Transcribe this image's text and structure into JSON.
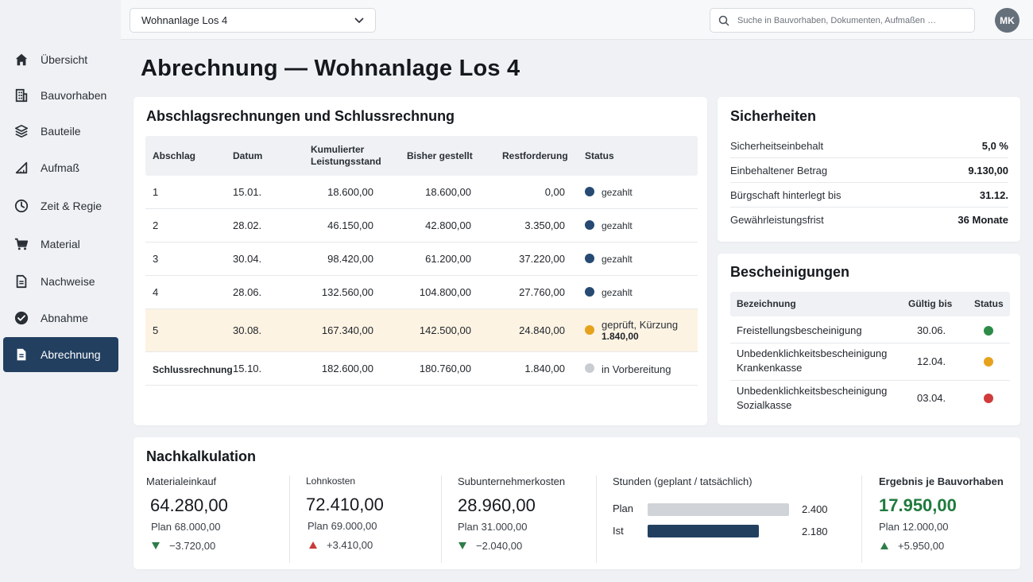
{
  "sidebar": {
    "items": [
      {
        "label": "Übersicht",
        "icon": "home-icon"
      },
      {
        "label": "Bauvorhaben",
        "icon": "building-icon"
      },
      {
        "label": "Bauteile",
        "icon": "layers-icon"
      },
      {
        "label": "Aufmaß",
        "icon": "ruler-triangle-icon"
      },
      {
        "label": "Zeit & Regie",
        "icon": "clock-icon"
      },
      {
        "label": "Material",
        "icon": "cart-icon"
      },
      {
        "label": "Nachweise",
        "icon": "document-icon"
      },
      {
        "label": "Abnahme",
        "icon": "check-circle-icon"
      },
      {
        "label": "Abrechnung",
        "icon": "invoice-icon"
      }
    ],
    "active_index": 8
  },
  "topbar": {
    "project": "Wohnanlage Los 4",
    "search_placeholder": "Suche in Bauvorhaben, Dokumenten, Aufmaßen …",
    "avatar_initials": "MK"
  },
  "page_title": "Abrechnung — Wohnanlage Los 4",
  "abrechnung": {
    "title": "Abschlagsrechnungen und Schlussrechnung",
    "headers": {
      "abschlag": "Abschlag",
      "datum": "Datum",
      "kumuliert_1": "Kumulierter",
      "kumuliert_2": "Leistungsstand",
      "bisher": "Bisher gestellt",
      "rest": "Restforderung",
      "status": "Status"
    },
    "rows": [
      {
        "nr": "1",
        "datum": "15.01.",
        "kumuliert": "18.600,00",
        "bisher": "18.600,00",
        "rest": "0,00",
        "status": "gezahlt",
        "status_sub": "",
        "color": "#264a72"
      },
      {
        "nr": "2",
        "datum": "28.02.",
        "kumuliert": "46.150,00",
        "bisher": "42.800,00",
        "rest": "3.350,00",
        "status": "gezahlt",
        "status_sub": "",
        "color": "#264a72"
      },
      {
        "nr": "3",
        "datum": "30.04.",
        "kumuliert": "98.420,00",
        "bisher": "61.200,00",
        "rest": "37.220,00",
        "status": "gezahlt",
        "status_sub": "",
        "color": "#264a72"
      },
      {
        "nr": "4",
        "datum": "28.06.",
        "kumuliert": "132.560,00",
        "bisher": "104.800,00",
        "rest": "27.760,00",
        "status": "gezahlt",
        "status_sub": "",
        "color": "#264a72"
      },
      {
        "nr": "5",
        "datum": "30.08.",
        "kumuliert": "167.340,00",
        "bisher": "142.500,00",
        "rest": "24.840,00",
        "status": "geprüft, Kürzung",
        "status_sub": "1.840,00",
        "color": "#e6a21c"
      },
      {
        "nr": "Schlussrechnung",
        "datum": "15.10.",
        "kumuliert": "182.600,00",
        "bisher": "180.760,00",
        "rest": "1.840,00",
        "status": "in Vorbereitung",
        "status_sub": "",
        "color": "#c9cdd3"
      }
    ]
  },
  "sicherheiten": {
    "title": "Sicherheiten",
    "rows": [
      {
        "k": "Sicherheitseinbehalt",
        "v": "5,0 %"
      },
      {
        "k": "Einbehaltener Betrag",
        "v": "9.130,00"
      },
      {
        "k": "Bürgschaft hinterlegt bis",
        "v": "31.12."
      },
      {
        "k": "Gewährleistungsfrist",
        "v": "36 Monate"
      }
    ]
  },
  "bescheinigungen": {
    "title": "Bescheinigungen",
    "headers": {
      "bez": "Bezeichnung",
      "gueltig": "Gültig bis",
      "status": "Status"
    },
    "rows": [
      {
        "l1": "Freistellungsbescheinigung",
        "l2": "",
        "date": "30.06.",
        "color": "#2e8b47"
      },
      {
        "l1": "Unbedenklichkeitsbescheinigung",
        "l2": "Krankenkasse",
        "date": "12.04.",
        "color": "#e6a21c"
      },
      {
        "l1": "Unbedenklichkeitsbescheinigung",
        "l2": "Sozialkasse",
        "date": "03.04.",
        "color": "#d03b3b"
      }
    ]
  },
  "nachkalkulation": {
    "title": "Nachkalkulation",
    "material": {
      "label": "Materialeinkauf",
      "value": "64.280,00",
      "plan": "Plan  68.000,00",
      "delta": "−3.720,00"
    },
    "lohn": {
      "label": "Lohnkosten",
      "value": "72.410,00",
      "plan": "Plan  69.000,00",
      "delta": "+3.410,00"
    },
    "sub": {
      "label": "Subunternehmerkosten",
      "value": "28.960,00",
      "plan": "Plan  31.000,00",
      "delta": "−2.040,00"
    },
    "stunden": {
      "label": "Stunden (geplant / tatsächlich)",
      "plan_label": "Plan",
      "plan_value": "2.400",
      "plan_hours": 2400,
      "ist_label": "Ist",
      "ist_value": "2.180",
      "ist_hours": 2180,
      "plan_color": "#d0d4d9",
      "ist_color": "#223f60"
    },
    "ergebnis": {
      "label": "Ergebnis je Bauvorhaben",
      "value": "17.950,00",
      "plan": "Plan  12.000,00",
      "delta": "+5.950,00",
      "color": "#1f7a3e"
    }
  }
}
